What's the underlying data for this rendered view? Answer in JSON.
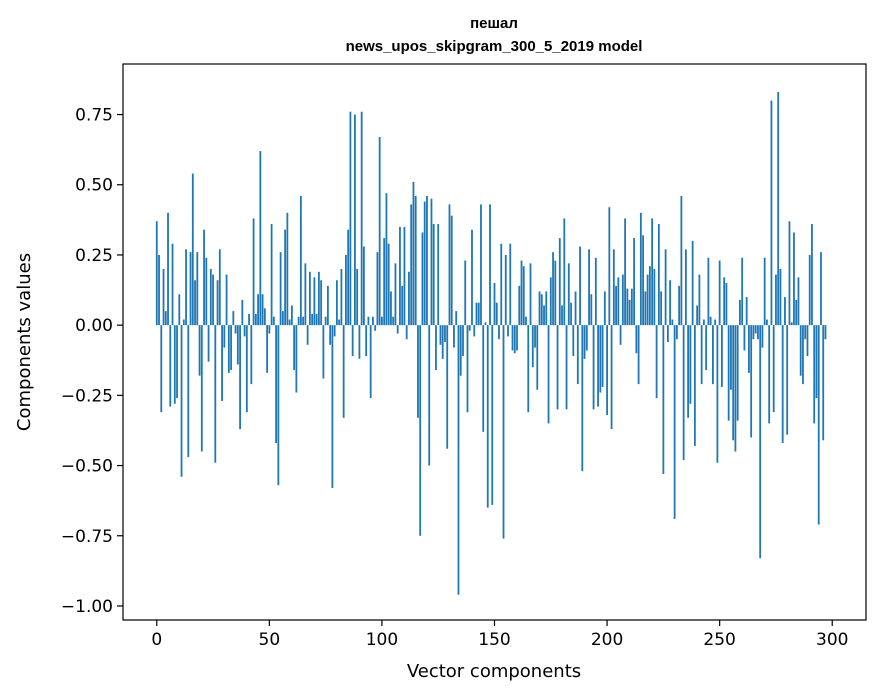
{
  "chart_data": {
    "type": "bar",
    "title_line1": "пешал",
    "title_line2": "news_upos_skipgram_300_5_2019 model",
    "xlabel": "Vector components",
    "ylabel": "Components values",
    "xlim": [
      -15,
      315
    ],
    "ylim": [
      -1.05,
      0.93
    ],
    "xticks": [
      0,
      50,
      100,
      150,
      200,
      250,
      300
    ],
    "xtick_labels": [
      "0",
      "50",
      "100",
      "150",
      "200",
      "250",
      "300"
    ],
    "yticks": [
      0.75,
      0.5,
      0.25,
      0.0,
      -0.25,
      -0.5,
      -0.75,
      -1.0
    ],
    "ytick_labels": [
      "0.75",
      "0.50",
      "0.25",
      "0.00",
      "−0.25",
      "−0.50",
      "−0.75",
      "−1.00"
    ],
    "bar_color": "#1f77b4",
    "values": [
      0.37,
      0.25,
      -0.31,
      0.2,
      0.05,
      0.4,
      -0.29,
      0.29,
      -0.28,
      -0.26,
      0.11,
      -0.54,
      0.02,
      0.27,
      -0.47,
      0.26,
      0.54,
      0.16,
      0.26,
      -0.18,
      -0.45,
      0.34,
      0.24,
      -0.13,
      0.2,
      0.18,
      -0.49,
      0.16,
      0.27,
      -0.27,
      -0.08,
      0.18,
      -0.17,
      -0.16,
      0.05,
      -0.03,
      -0.14,
      -0.37,
      0.09,
      -0.04,
      -0.31,
      0.04,
      -0.21,
      0.38,
      0.04,
      0.11,
      0.62,
      0.11,
      0.06,
      -0.17,
      -0.03,
      0.36,
      0.03,
      -0.42,
      -0.57,
      0.26,
      0.05,
      0.34,
      0.4,
      0.02,
      0.07,
      -0.16,
      -0.24,
      0.03,
      0.46,
      0.03,
      0.22,
      -0.07,
      0.19,
      0.04,
      0.17,
      0.04,
      0.19,
      0.16,
      -0.19,
      0.03,
      0.14,
      -0.07,
      -0.58,
      -0.04,
      0.16,
      0.02,
      0.2,
      -0.33,
      0.25,
      0.34,
      0.76,
      -0.11,
      0.75,
      0.2,
      -0.12,
      0.76,
      0.28,
      -0.11,
      0.03,
      -0.26,
      0.03,
      -0.02,
      0.26,
      0.67,
      0.03,
      0.31,
      0.47,
      0.29,
      0.12,
      0.03,
      0.22,
      -0.03,
      0.35,
      0.14,
      0.35,
      -0.05,
      0.19,
      0.43,
      0.51,
      0.46,
      -0.33,
      -0.75,
      0.33,
      0.44,
      0.46,
      -0.5,
      0.45,
      0.36,
      -0.16,
      0.36,
      -0.07,
      -0.12,
      -0.06,
      -0.44,
      0.43,
      0.39,
      -0.08,
      0.05,
      -0.96,
      -0.18,
      -0.11,
      0.23,
      -0.31,
      -0.02,
      0.34,
      -0.04,
      0.08,
      0.08,
      0.43,
      -0.38,
      0.01,
      -0.65,
      0.43,
      -0.64,
      0.15,
      0.08,
      -0.05,
      0.29,
      -0.76,
      0.25,
      -0.04,
      0.29,
      -0.09,
      -0.1,
      -0.09,
      0.14,
      0.23,
      0.21,
      0.03,
      -0.31,
      0.22,
      -0.15,
      -0.08,
      -0.23,
      0.12,
      0.11,
      0.07,
      0.12,
      -0.35,
      0.17,
      0.26,
      0.23,
      -0.3,
      0.31,
      0.07,
      0.38,
      -0.3,
      0.22,
      0.08,
      -0.11,
      0.12,
      -0.21,
      0.28,
      -0.52,
      -0.12,
      -0.09,
      0.27,
      0.11,
      -0.3,
      0.24,
      -0.29,
      -0.24,
      -0.22,
      0.12,
      -0.32,
      0.42,
      -0.37,
      0.27,
      0.14,
      0.17,
      -0.07,
      0.18,
      0.38,
      0.13,
      0.09,
      0.13,
      0.31,
      -0.1,
      -0.21,
      0.4,
      0.32,
      0.12,
      0.18,
      0.21,
      0.38,
      0.2,
      -0.26,
      0.36,
      0.12,
      -0.53,
      0.27,
      -0.06,
      0.16,
      0.02,
      -0.69,
      -0.05,
      0.14,
      0.46,
      -0.48,
      0.27,
      -0.33,
      -0.28,
      0.3,
      -0.43,
      0.07,
      0.18,
      -0.21,
      0.02,
      -0.16,
      0.24,
      0.03,
      -0.21,
      0.02,
      -0.49,
      0.23,
      -0.22,
      0.17,
      0.15,
      -0.34,
      -0.23,
      -0.41,
      -0.45,
      -0.34,
      0.09,
      0.24,
      -0.09,
      0.1,
      -0.17,
      -0.4,
      -0.05,
      -0.03,
      -0.05,
      -0.83,
      -0.08,
      0.24,
      0.02,
      -0.35,
      0.8,
      -0.31,
      0.18,
      0.83,
      0.2,
      -0.42,
      0.1,
      -0.39,
      0.37,
      0.01,
      0.33,
      0.09,
      0.17,
      -0.18,
      -0.21,
      -0.05,
      -0.11,
      0.25,
      0.36,
      -0.35,
      -0.26,
      -0.71,
      0.26,
      -0.41,
      -0.05
    ]
  }
}
